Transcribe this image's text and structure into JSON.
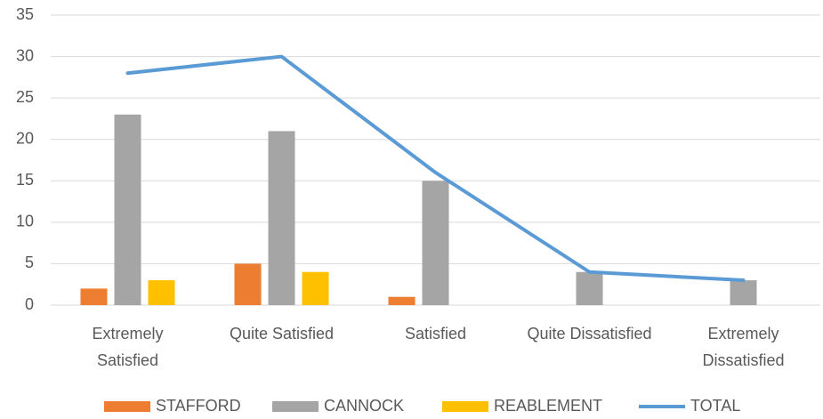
{
  "chart_data": {
    "type": "bar",
    "categories": [
      "Extremely\nSatisfied",
      "Quite Satisfied",
      "Satisfied",
      "Quite Dissatisfied",
      "Extremely\nDissatisfied"
    ],
    "series": [
      {
        "name": "STAFFORD",
        "type": "bar",
        "color": "#ed7d31",
        "values": [
          2,
          5,
          1,
          0,
          0
        ]
      },
      {
        "name": "CANNOCK",
        "type": "bar",
        "color": "#a5a5a5",
        "values": [
          23,
          21,
          15,
          4,
          3
        ]
      },
      {
        "name": "REABLEMENT",
        "type": "bar",
        "color": "#ffc000",
        "values": [
          3,
          4,
          0,
          0,
          0
        ]
      },
      {
        "name": "TOTAL",
        "type": "line",
        "color": "#5b9bd5",
        "values": [
          28,
          30,
          16,
          4,
          3
        ]
      }
    ],
    "ylim": [
      0,
      35
    ],
    "yticks": [
      0,
      5,
      10,
      15,
      20,
      25,
      30,
      35
    ],
    "grid": true,
    "legend": "bottom"
  }
}
